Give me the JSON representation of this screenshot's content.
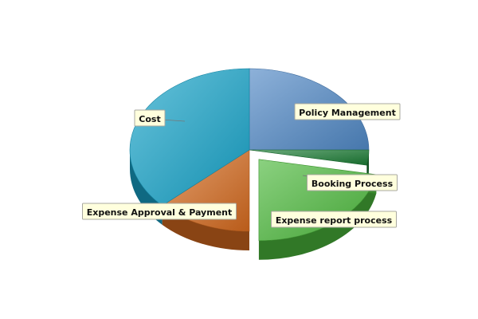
{
  "chart_data": {
    "type": "pie",
    "title": "",
    "slices": [
      {
        "label": "Policy Management",
        "value": 25,
        "color": "#4f87c4",
        "exploded": false
      },
      {
        "label": "Booking Process",
        "value": 3,
        "color": "#1a7a33",
        "exploded": false
      },
      {
        "label": "Expense report process",
        "value": 22,
        "color": "#4cb83c",
        "exploded": true
      },
      {
        "label": "Expense Approval & Payment",
        "value": 13,
        "color": "#d2691e",
        "exploded": false
      },
      {
        "label": "Cost",
        "value": 37,
        "color": "#17a2c8",
        "exploded": false
      }
    ],
    "three_d": true,
    "legend": "none"
  }
}
